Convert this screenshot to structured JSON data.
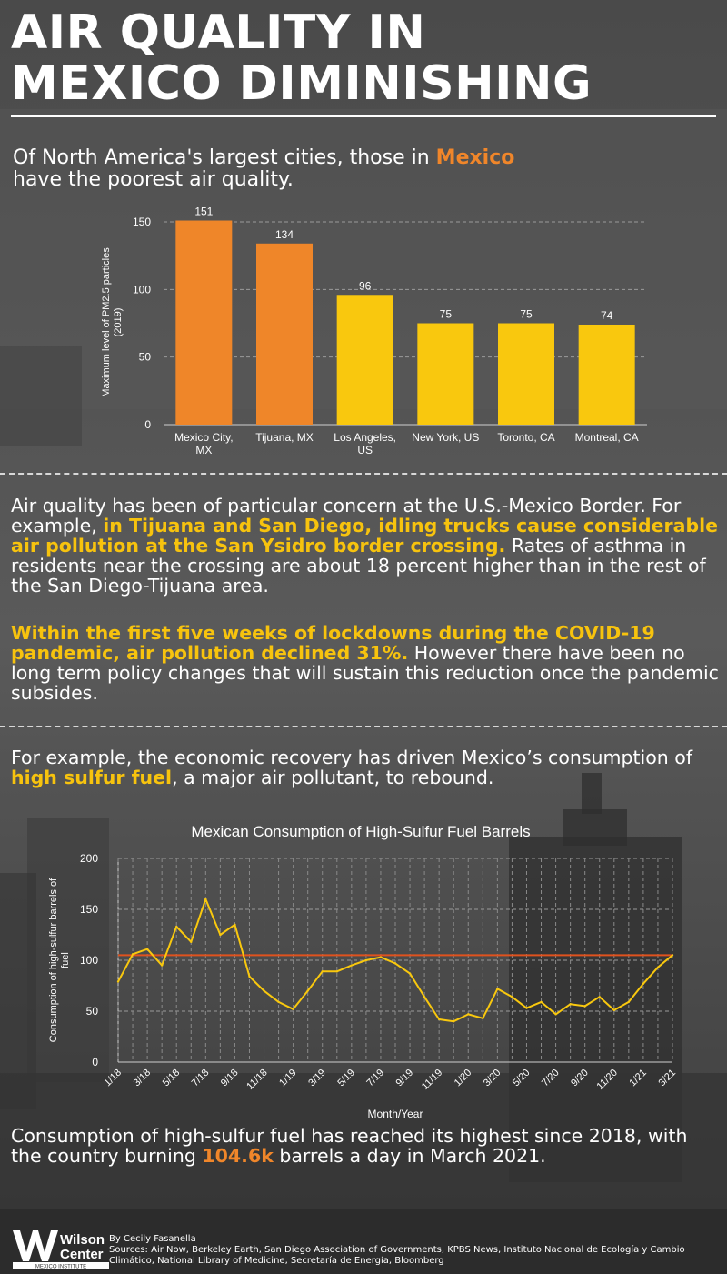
{
  "header": {
    "title_line1": "AIR QUALITY IN",
    "title_line2": "MEXICO DIMINISHING"
  },
  "intro": {
    "pre": "Of North America's largest cities, those in ",
    "highlight": "Mexico",
    "post": "have the poorest air quality."
  },
  "paragraph1": {
    "pre": "Air quality has been of particular concern at the U.S.-Mexico Border. For example, ",
    "highlight": "in Tijuana and San Diego, idling trucks cause considerable air pollution at the San Ysidro border crossing.",
    "post": " Rates of asthma in residents near the crossing are about 18 percent higher than in the rest of the San Diego-Tijuana area."
  },
  "paragraph2": {
    "highlight": "Within the first five weeks of lockdowns during the COVID-19 pandemic, air pollution declined 31%.",
    "post": " However there have been no long term policy changes that will sustain this reduction once the pandemic subsides."
  },
  "paragraph3": {
    "pre": "For example, the economic recovery has driven Mexico’s consumption of ",
    "highlight": "high sulfur fuel",
    "post": ", a major air pollutant, to rebound."
  },
  "conclusion": {
    "pre": "Consumption of high-sulfur fuel has reached its highest since 2018, with the country burning ",
    "highlight": "104.6k",
    "post": " barrels a day in March 2021."
  },
  "footer": {
    "logo_line1": "Wilson",
    "logo_line2": "Center",
    "logo_sub": "MEXICO INSTITUTE",
    "byline": "By Cecily Fasanella",
    "sources": "Sources: Air Now, Berkeley Earth, San Diego Association of Governments, KPBS News, Instituto Nacional de Ecología y Cambio Climático, National Library of Medicine, Secretaría de Energía, Bloomberg"
  },
  "colors": {
    "mexico_bar": "#ef8629",
    "other_bar": "#f9c80e",
    "line": "#f9c80e",
    "reference_line": "#e0521e"
  },
  "chart_data": [
    {
      "type": "bar",
      "ylabel": "Maximum level of PM2.5 particles (2019)",
      "categories": [
        "Mexico City, MX",
        "Tijuana, MX",
        "Los Angeles, US",
        "New York, US",
        "Toronto, CA",
        "Montreal, CA"
      ],
      "values": [
        151,
        134,
        96,
        75,
        75,
        74
      ],
      "country": [
        "MX",
        "MX",
        "US",
        "US",
        "CA",
        "CA"
      ],
      "ylim": [
        0,
        150
      ],
      "yticks": [
        0,
        50,
        100,
        150
      ],
      "grid": true
    },
    {
      "type": "line",
      "title": "Mexican Consumption of High-Sulfur Fuel Barrels",
      "xlabel": "Month/Year",
      "ylabel": "Consumption of high-sulfur barrels of fuel",
      "x": [
        "1/18",
        "2/18",
        "3/18",
        "4/18",
        "5/18",
        "6/18",
        "7/18",
        "8/18",
        "9/18",
        "10/18",
        "11/18",
        "12/18",
        "1/19",
        "2/19",
        "3/19",
        "4/19",
        "5/19",
        "6/19",
        "7/19",
        "8/19",
        "9/19",
        "10/19",
        "11/19",
        "12/19",
        "1/20",
        "2/20",
        "3/20",
        "4/20",
        "5/20",
        "6/20",
        "7/20",
        "8/20",
        "9/20",
        "10/20",
        "11/20",
        "12/20",
        "1/21",
        "2/21",
        "3/21"
      ],
      "x_tick_labels": [
        "1/18",
        "3/18",
        "5/18",
        "7/18",
        "9/18",
        "11/18",
        "1/19",
        "3/19",
        "5/19",
        "7/19",
        "9/19",
        "11/19",
        "1/20",
        "3/20",
        "5/20",
        "7/20",
        "9/20",
        "11/20",
        "1/21",
        "3/21"
      ],
      "y": [
        79,
        106,
        111,
        95,
        133,
        118,
        160,
        125,
        135,
        84,
        70,
        59,
        52,
        70,
        89,
        89,
        95,
        100,
        103,
        97,
        87,
        64,
        42,
        40,
        47,
        43,
        72,
        64,
        53,
        59,
        47,
        57,
        55,
        64,
        51,
        59,
        77,
        93,
        105
      ],
      "reference_line": 105,
      "ylim": [
        0,
        200
      ],
      "yticks": [
        0,
        50,
        100,
        150,
        200
      ],
      "grid": true
    }
  ]
}
